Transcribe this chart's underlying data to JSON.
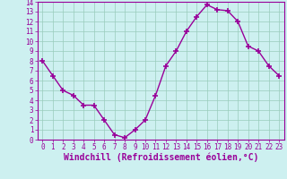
{
  "x": [
    0,
    1,
    2,
    3,
    4,
    5,
    6,
    7,
    8,
    9,
    10,
    11,
    12,
    13,
    14,
    15,
    16,
    17,
    18,
    19,
    20,
    21,
    22,
    23
  ],
  "y": [
    8.0,
    6.5,
    5.0,
    4.5,
    3.5,
    3.5,
    2.0,
    0.5,
    0.2,
    1.0,
    2.0,
    4.5,
    7.5,
    9.0,
    11.0,
    12.5,
    13.7,
    13.2,
    13.1,
    12.0,
    9.5,
    9.0,
    7.5,
    6.5
  ],
  "line_color": "#990099",
  "marker": "+",
  "marker_size": 4,
  "bg_color": "#cdf0f0",
  "grid_color": "#99ccbb",
  "xlabel": "Windchill (Refroidissement éolien,°C)",
  "xlabel_color": "#990099",
  "xlim_min": -0.5,
  "xlim_max": 23.5,
  "ylim_min": 0,
  "ylim_max": 14,
  "xticks": [
    0,
    1,
    2,
    3,
    4,
    5,
    6,
    7,
    8,
    9,
    10,
    11,
    12,
    13,
    14,
    15,
    16,
    17,
    18,
    19,
    20,
    21,
    22,
    23
  ],
  "yticks": [
    0,
    1,
    2,
    3,
    4,
    5,
    6,
    7,
    8,
    9,
    10,
    11,
    12,
    13,
    14
  ],
  "tick_label_size": 5.5,
  "xlabel_size": 7.0,
  "line_width": 1.0,
  "marker_edge_width": 1.2
}
